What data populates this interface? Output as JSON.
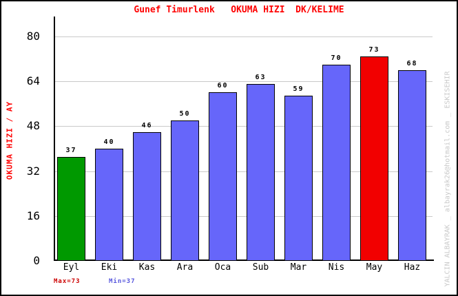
{
  "window": {
    "background": "#ffffff",
    "border_color": "#000000"
  },
  "chart_data": {
    "type": "bar",
    "title": "Gunef Timurlenk   OKUMA HIZI  DK/KELIME",
    "title_color": "#ff0000",
    "ylabel": "OKUMA HIZI / AY",
    "ylabel_color": "#ff0000",
    "xlabel": "",
    "categories": [
      "Eyl",
      "Eki",
      "Kas",
      "Ara",
      "Oca",
      "Sub",
      "Mar",
      "Nis",
      "May",
      "Haz"
    ],
    "values": [
      37,
      40,
      46,
      50,
      60,
      63,
      59,
      70,
      73,
      68
    ],
    "bar_colors": [
      "#009900",
      "#6666fa",
      "#6666fa",
      "#6666fa",
      "#6666fa",
      "#6666fa",
      "#6666fa",
      "#6666fa",
      "#f20000",
      "#6666fa"
    ],
    "palette": {
      "default": "#6666fa",
      "first": "#009900",
      "max": "#f20000"
    },
    "yticks": [
      0,
      16,
      32,
      48,
      64,
      80
    ],
    "ylim": [
      0,
      80
    ],
    "grid": true,
    "gridline_color": "#c9c9c9",
    "legend": "none"
  },
  "footer": {
    "max_label": "Max=73",
    "max_color": "#cc0000",
    "min_label": "Min=37",
    "min_color": "#5555dd"
  },
  "watermark": {
    "text": "YALCIN ALBAYRAK _ albayrak26@hotmail.com _ ESKISEHIR",
    "color": "#c9c9c9"
  }
}
